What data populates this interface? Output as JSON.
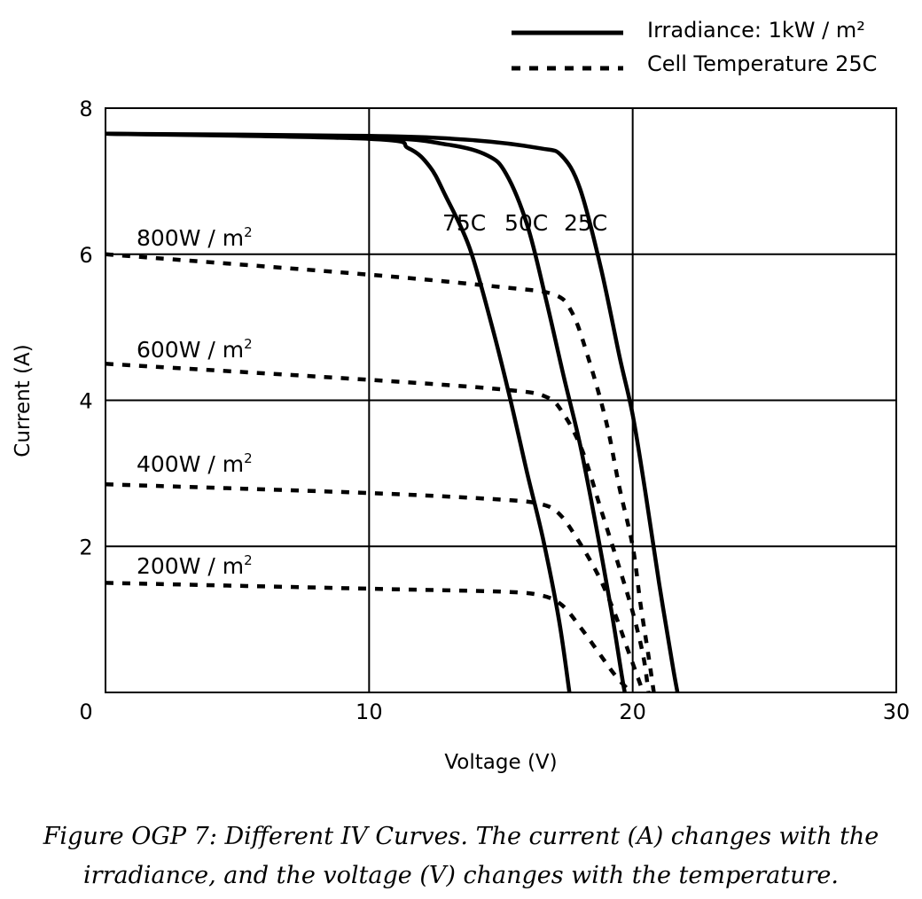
{
  "chart_data": {
    "type": "line",
    "xlabel": "Voltage (V)",
    "ylabel": "Current (A)",
    "xlim": [
      0,
      30
    ],
    "ylim": [
      0,
      8
    ],
    "x_ticks": [
      "0",
      "10",
      "20",
      "30"
    ],
    "y_ticks": [
      "2",
      "4",
      "6",
      "8"
    ],
    "grid": true,
    "legend": [
      {
        "label": "Irradiance: 1kW / m²",
        "style": "solid"
      },
      {
        "label": "Cell Temperature 25C",
        "style": "dotted"
      }
    ],
    "legend_position": "top-right",
    "series": [
      {
        "name": "25C",
        "style": "solid",
        "points": [
          [
            0,
            7.65
          ],
          [
            10,
            7.62
          ],
          [
            14,
            7.56
          ],
          [
            16.5,
            7.45
          ],
          [
            17.3,
            7.35
          ],
          [
            18,
            6.9
          ],
          [
            18.8,
            5.8
          ],
          [
            19.5,
            4.6
          ],
          [
            20,
            3.8
          ],
          [
            20.5,
            2.7
          ],
          [
            21,
            1.5
          ],
          [
            21.5,
            0.4
          ],
          [
            21.7,
            0
          ]
        ]
      },
      {
        "name": "50C",
        "style": "solid",
        "points": [
          [
            0,
            7.65
          ],
          [
            10,
            7.6
          ],
          [
            13,
            7.5
          ],
          [
            14.5,
            7.35
          ],
          [
            15.2,
            7.1
          ],
          [
            16,
            6.4
          ],
          [
            16.7,
            5.4
          ],
          [
            17.4,
            4.3
          ],
          [
            18,
            3.4
          ],
          [
            18.6,
            2.3
          ],
          [
            19.2,
            1.1
          ],
          [
            19.6,
            0.2
          ],
          [
            19.7,
            0
          ]
        ]
      },
      {
        "name": "75C",
        "style": "solid",
        "points": [
          [
            0,
            7.65
          ],
          [
            10,
            7.58
          ],
          [
            11.5,
            7.45
          ],
          [
            12.3,
            7.2
          ],
          [
            12.9,
            6.8
          ],
          [
            13.8,
            6.1
          ],
          [
            14.6,
            5.1
          ],
          [
            15.3,
            4.1
          ],
          [
            16,
            3.0
          ],
          [
            16.6,
            2.1
          ],
          [
            17.2,
            1.0
          ],
          [
            17.6,
            0
          ]
        ]
      },
      {
        "name": "800W / m²",
        "style": "dotted",
        "points": [
          [
            0,
            6.0
          ],
          [
            10,
            5.72
          ],
          [
            15,
            5.55
          ],
          [
            17,
            5.45
          ],
          [
            17.7,
            5.2
          ],
          [
            18.3,
            4.6
          ],
          [
            19,
            3.7
          ],
          [
            19.5,
            2.8
          ],
          [
            20,
            2.0
          ],
          [
            20.3,
            1.2
          ],
          [
            20.6,
            0.5
          ],
          [
            20.8,
            0
          ]
        ]
      },
      {
        "name": "600W / m²",
        "style": "dotted",
        "points": [
          [
            0,
            4.5
          ],
          [
            10,
            4.28
          ],
          [
            15,
            4.15
          ],
          [
            16.7,
            4.05
          ],
          [
            17.4,
            3.8
          ],
          [
            18.1,
            3.3
          ],
          [
            18.8,
            2.5
          ],
          [
            19.5,
            1.7
          ],
          [
            20,
            1.1
          ],
          [
            20.4,
            0.5
          ],
          [
            20.6,
            0
          ]
        ]
      },
      {
        "name": "400W / m²",
        "style": "dotted",
        "points": [
          [
            0,
            2.85
          ],
          [
            10,
            2.73
          ],
          [
            15,
            2.64
          ],
          [
            16.5,
            2.58
          ],
          [
            17.2,
            2.45
          ],
          [
            17.9,
            2.1
          ],
          [
            18.7,
            1.6
          ],
          [
            19.3,
            1.1
          ],
          [
            19.8,
            0.6
          ],
          [
            20.2,
            0.2
          ],
          [
            20.4,
            0
          ]
        ]
      },
      {
        "name": "200W / m²",
        "style": "dotted",
        "points": [
          [
            0,
            1.5
          ],
          [
            10,
            1.42
          ],
          [
            15,
            1.38
          ],
          [
            16.5,
            1.33
          ],
          [
            17.3,
            1.2
          ],
          [
            18,
            0.9
          ],
          [
            18.7,
            0.55
          ],
          [
            19.3,
            0.25
          ],
          [
            19.8,
            0.05
          ],
          [
            20,
            0
          ]
        ]
      }
    ],
    "annotations": {
      "temperature": [
        "75C",
        "50C",
        "25C"
      ],
      "irradiance": [
        "800W / m",
        "600W / m",
        "400W / m",
        "200W / m"
      ],
      "superscript": "2"
    }
  },
  "caption": "Figure OGP 7: Different IV Curves. The current (A) changes with the irradiance, and the voltage (V) changes with the temperature.",
  "colors": {
    "line": "#000000",
    "grid": "#000000",
    "background": "#ffffff"
  }
}
